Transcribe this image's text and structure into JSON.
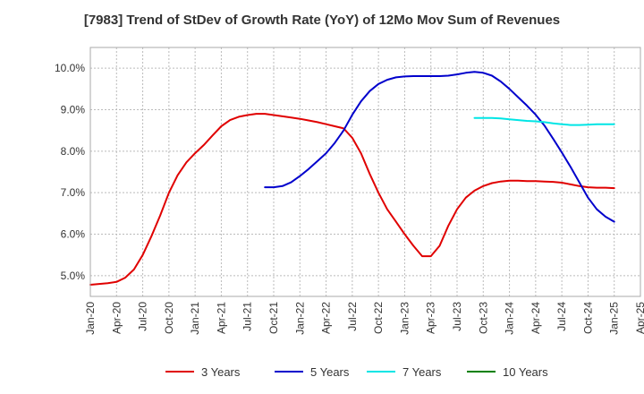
{
  "chart_data": {
    "type": "line",
    "title": "[7983]  Trend of StDev of Growth Rate (YoY) of 12Mo Mov Sum of Revenues",
    "xlabel": "",
    "ylabel": "",
    "x_ticks": [
      "Jan-20",
      "Apr-20",
      "Jul-20",
      "Oct-20",
      "Jan-21",
      "Apr-21",
      "Jul-21",
      "Oct-21",
      "Jan-22",
      "Apr-22",
      "Jul-22",
      "Oct-22",
      "Jan-23",
      "Apr-23",
      "Jul-23",
      "Oct-23",
      "Jan-24",
      "Apr-24",
      "Jul-24",
      "Oct-24",
      "Jan-25",
      "Apr-25"
    ],
    "x_start": "Jan-20",
    "x_unit": "months since Jan-20",
    "xlim": [
      0,
      63
    ],
    "ylim": [
      4.5,
      10.5
    ],
    "y_ticks": [
      5.0,
      6.0,
      7.0,
      8.0,
      9.0,
      10.0
    ],
    "y_tick_labels": [
      "5.0%",
      "6.0%",
      "7.0%",
      "8.0%",
      "9.0%",
      "10.0%"
    ],
    "grid": true,
    "legend_position": "bottom",
    "series": [
      {
        "name": "3 Years",
        "color": "#e00000",
        "x": [
          0,
          1,
          2,
          3,
          4,
          5,
          6,
          7,
          8,
          9,
          10,
          11,
          12,
          13,
          14,
          15,
          16,
          17,
          18,
          19,
          20,
          21,
          22,
          23,
          24,
          25,
          26,
          27,
          28,
          29,
          30,
          31,
          32,
          33,
          34,
          35,
          36,
          37,
          38,
          39,
          40,
          41,
          42,
          43,
          44,
          45,
          46,
          47,
          48,
          49,
          50,
          51,
          52,
          53,
          54,
          55,
          56,
          57,
          58,
          59,
          60
        ],
        "y": [
          4.78,
          4.8,
          4.82,
          4.85,
          4.95,
          5.15,
          5.5,
          5.95,
          6.45,
          7.0,
          7.42,
          7.73,
          7.95,
          8.15,
          8.38,
          8.6,
          8.75,
          8.83,
          8.87,
          8.9,
          8.9,
          8.87,
          8.84,
          8.81,
          8.78,
          8.74,
          8.7,
          8.65,
          8.6,
          8.55,
          8.32,
          7.95,
          7.45,
          7.0,
          6.6,
          6.3,
          6.0,
          5.72,
          5.47,
          5.47,
          5.72,
          6.2,
          6.6,
          6.88,
          7.05,
          7.16,
          7.23,
          7.27,
          7.29,
          7.29,
          7.28,
          7.28,
          7.27,
          7.26,
          7.24,
          7.2,
          7.16,
          7.13,
          7.12,
          7.12,
          7.11
        ]
      },
      {
        "name": "5 Years",
        "color": "#0000cc",
        "x": [
          20,
          21,
          22,
          23,
          24,
          25,
          26,
          27,
          28,
          29,
          30,
          31,
          32,
          33,
          34,
          35,
          36,
          37,
          38,
          39,
          40,
          41,
          42,
          43,
          44,
          45,
          46,
          47,
          48,
          49,
          50,
          51,
          52,
          53,
          54,
          55,
          56,
          57,
          58,
          59,
          60
        ],
        "y": [
          7.13,
          7.13,
          7.16,
          7.25,
          7.4,
          7.57,
          7.76,
          7.95,
          8.2,
          8.5,
          8.88,
          9.2,
          9.45,
          9.62,
          9.72,
          9.78,
          9.8,
          9.81,
          9.81,
          9.81,
          9.81,
          9.82,
          9.85,
          9.89,
          9.91,
          9.89,
          9.82,
          9.68,
          9.5,
          9.3,
          9.1,
          8.88,
          8.62,
          8.3,
          7.97,
          7.62,
          7.25,
          6.88,
          6.6,
          6.42,
          6.3
        ]
      },
      {
        "name": "7 Years",
        "color": "#00e5e5",
        "x": [
          44,
          45,
          46,
          47,
          48,
          49,
          50,
          51,
          52,
          53,
          54,
          55,
          56,
          57,
          58,
          59,
          60
        ],
        "y": [
          8.8,
          8.8,
          8.8,
          8.79,
          8.77,
          8.75,
          8.73,
          8.72,
          8.7,
          8.67,
          8.65,
          8.63,
          8.63,
          8.64,
          8.65,
          8.65,
          8.65
        ]
      },
      {
        "name": "10 Years",
        "color": "#008000",
        "x": [],
        "y": []
      }
    ]
  }
}
